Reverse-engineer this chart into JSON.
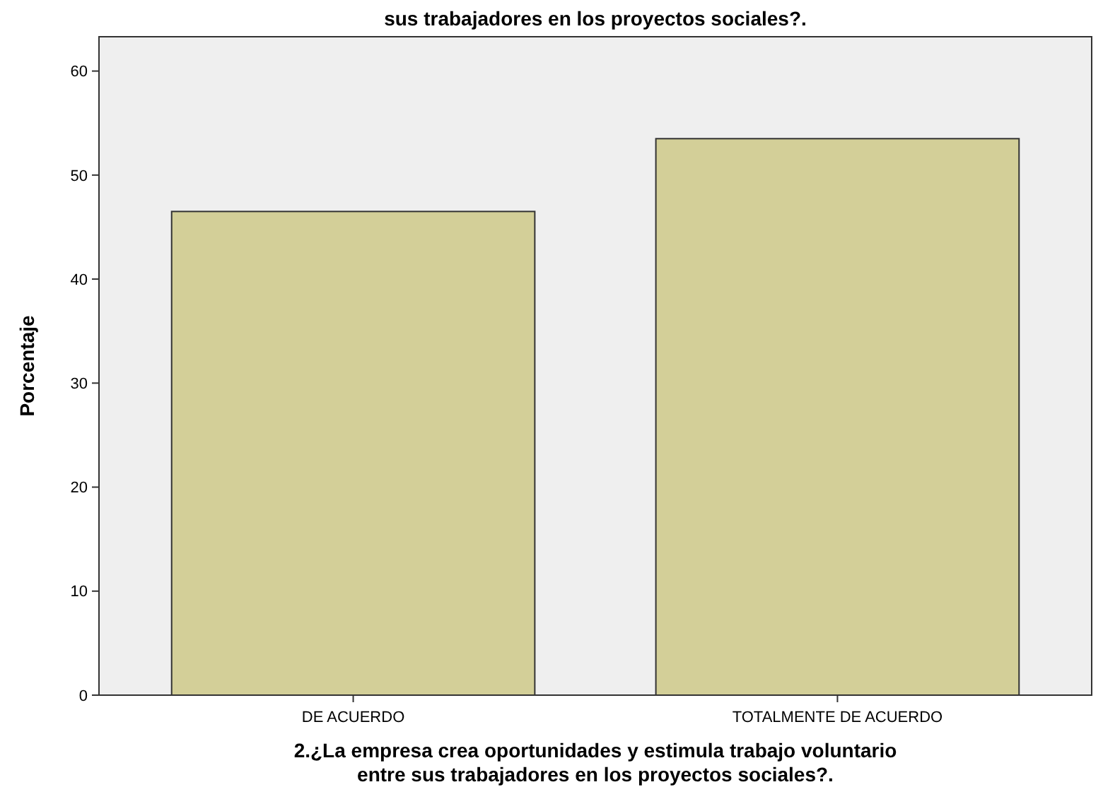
{
  "chart_data": {
    "type": "bar",
    "title": "sus trabajadores en los proyectos sociales?.",
    "xlabel": "2.¿La empresa crea oportunidades y estimula trabajo voluntario\nentre sus trabajadores en los proyectos sociales?.",
    "ylabel": "Porcentaje",
    "categories": [
      "DE ACUERDO",
      "TOTALMENTE DE ACUERDO"
    ],
    "values": [
      46.5,
      53.5
    ],
    "color": "#d3cf98",
    "ylim": [
      0,
      63.3
    ],
    "yticks": [
      0,
      10,
      20,
      30,
      40,
      50,
      60
    ]
  }
}
